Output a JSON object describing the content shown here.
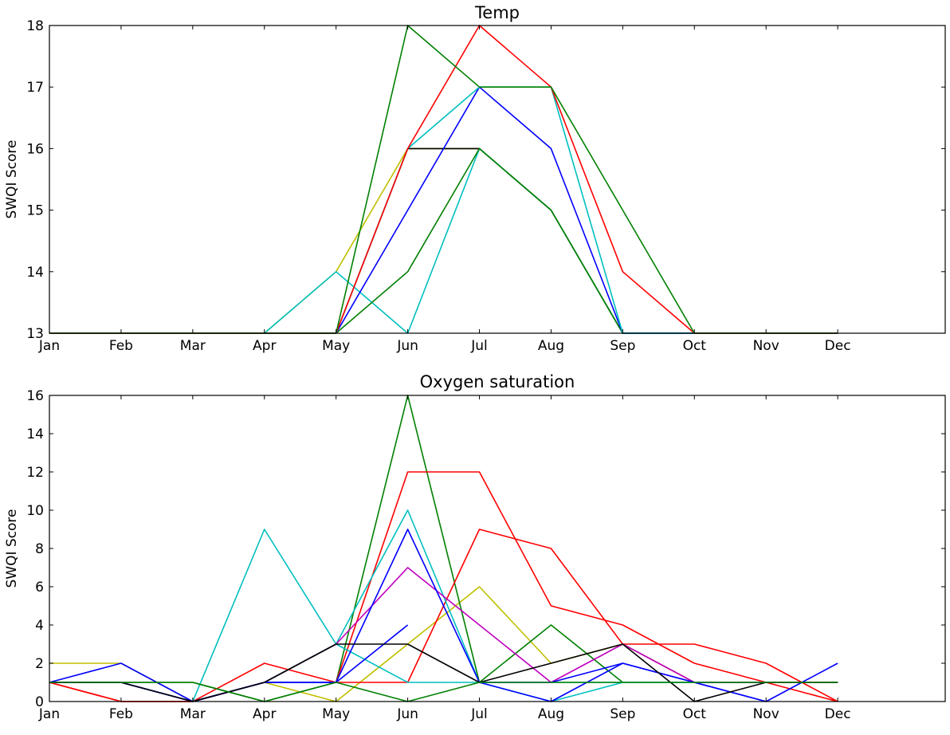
{
  "chart_data": [
    {
      "type": "line",
      "title": "Temp",
      "xlabel": "",
      "ylabel": "SWQI Score",
      "categories": [
        "Jan",
        "Feb",
        "Mar",
        "Apr",
        "May",
        "Jun",
        "Jul",
        "Aug",
        "Sep",
        "Oct",
        "Nov",
        "Dec"
      ],
      "xlim": [
        0,
        12.5
      ],
      "ylim": [
        13,
        18
      ],
      "yticks": [
        13,
        14,
        15,
        16,
        17,
        18
      ],
      "grid": false,
      "series": [
        {
          "color": "#bfbf00",
          "values": [
            13,
            13,
            13,
            13,
            14,
            16,
            16,
            15,
            13,
            13,
            13,
            13
          ]
        },
        {
          "color": "#000000",
          "values": [
            13,
            13,
            13,
            13,
            13,
            16,
            16,
            15,
            13,
            13,
            13,
            13
          ]
        },
        {
          "color": "#00bfbf",
          "values": [
            13,
            13,
            13,
            13,
            14,
            13,
            16,
            15,
            13,
            13,
            13,
            13
          ]
        },
        {
          "color": "#008000",
          "values": [
            13,
            13,
            13,
            13,
            13,
            14,
            16,
            15,
            13,
            13,
            13,
            13
          ]
        },
        {
          "color": "#0000ff",
          "values": [
            13,
            13,
            13,
            13,
            13,
            15,
            17,
            16,
            13,
            13,
            13,
            13
          ]
        },
        {
          "color": "#00bfbf",
          "values": [
            13,
            13,
            13,
            13,
            13,
            16,
            17,
            17,
            13,
            13,
            13,
            13
          ]
        },
        {
          "color": "#ff0000",
          "values": [
            13,
            13,
            13,
            13,
            13,
            16,
            18,
            17,
            14,
            13,
            13,
            13
          ]
        },
        {
          "color": "#008000",
          "values": [
            13,
            13,
            13,
            13,
            13,
            18,
            17,
            17,
            15,
            13,
            13,
            13
          ]
        }
      ]
    },
    {
      "type": "line",
      "title": "Oxygen saturation",
      "xlabel": "",
      "ylabel": "SWQI Score",
      "categories": [
        "Jan",
        "Feb",
        "Mar",
        "Apr",
        "May",
        "Jun",
        "Jul",
        "Aug",
        "Sep",
        "Oct",
        "Nov",
        "Dec"
      ],
      "xlim": [
        0,
        12.5
      ],
      "ylim": [
        0,
        16
      ],
      "yticks": [
        0,
        2,
        4,
        6,
        8,
        10,
        12,
        14,
        16
      ],
      "grid": false,
      "series": [
        {
          "color": "#bfbf00",
          "values": [
            2,
            2,
            0,
            1,
            0,
            3,
            6,
            2,
            3,
            1,
            1,
            1
          ]
        },
        {
          "color": "#008000",
          "values": [
            1,
            1,
            1,
            0,
            1,
            16,
            1,
            4,
            1,
            1,
            1,
            1
          ]
        },
        {
          "color": "#ff0000",
          "values": [
            1,
            0,
            0,
            2,
            1,
            12,
            12,
            5,
            4,
            2,
            1,
            0
          ]
        },
        {
          "color": "#ff0000",
          "values": [
            1,
            0,
            0,
            1,
            1,
            1,
            9,
            8,
            3,
            3,
            2,
            0
          ]
        },
        {
          "color": "#00bfbf",
          "values": [
            1,
            1,
            0,
            9,
            3,
            10,
            1,
            1,
            1,
            1,
            1,
            1
          ]
        },
        {
          "color": "#00bfbf",
          "values": [
            1,
            1,
            0,
            1,
            3,
            1,
            1,
            0,
            1,
            1,
            1,
            1
          ]
        },
        {
          "color": "#bf00bf",
          "values": [
            1,
            1,
            0,
            1,
            3,
            7,
            4,
            1,
            3,
            1,
            1,
            1
          ]
        },
        {
          "color": "#0000ff",
          "values": [
            1,
            2,
            0,
            1,
            1,
            9,
            1,
            1,
            2,
            1,
            0,
            2
          ]
        },
        {
          "color": "#0000ff",
          "values": [
            1,
            1,
            0,
            1,
            1,
            4,
            null,
            null,
            null,
            null,
            null,
            null
          ]
        },
        {
          "color": "#0000ff",
          "values": [
            1,
            1,
            0,
            1,
            1,
            null,
            1,
            0,
            2,
            1,
            0,
            null
          ]
        },
        {
          "color": "#000000",
          "values": [
            1,
            1,
            0,
            1,
            3,
            3,
            1,
            2,
            3,
            0,
            1,
            1
          ]
        },
        {
          "color": "#008000",
          "values": [
            1,
            1,
            1,
            0,
            1,
            0,
            1,
            1,
            1,
            1,
            1,
            1
          ]
        }
      ]
    }
  ]
}
